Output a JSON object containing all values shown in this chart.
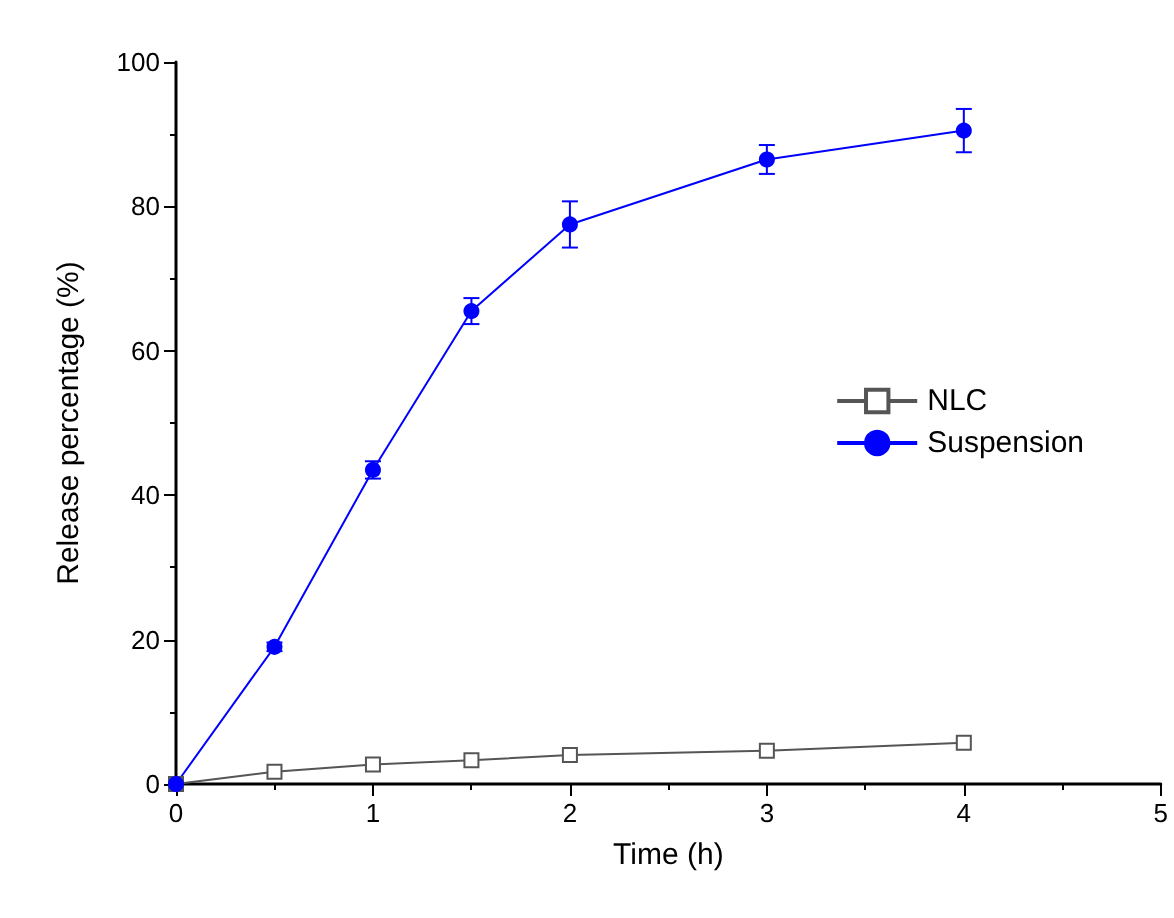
{
  "chart_data": {
    "type": "line",
    "xlabel": "Time (h)",
    "ylabel": "Release percentage (%)",
    "x": [
      0,
      0.5,
      1,
      1.5,
      2,
      3,
      4
    ],
    "series": [
      {
        "name": "NLC",
        "color": "#555555",
        "marker": "square",
        "values": [
          0,
          1.7,
          2.7,
          3.3,
          4,
          4.6,
          5.7
        ]
      },
      {
        "name": "Suspension",
        "color": "#0000ff",
        "marker": "circle",
        "values": [
          0,
          19,
          43.5,
          65.5,
          77.5,
          86.5,
          90.5
        ],
        "errors": [
          null,
          0.6,
          1.2,
          1.8,
          3.2,
          2,
          3
        ]
      }
    ],
    "xlim": [
      0,
      5
    ],
    "xticks": [
      0,
      1,
      2,
      3,
      4,
      5
    ],
    "ylim": [
      0,
      100
    ],
    "yticks": [
      0,
      20,
      40,
      60,
      80,
      100
    ],
    "grid": false,
    "legend": "right",
    "line_style": "solid"
  }
}
